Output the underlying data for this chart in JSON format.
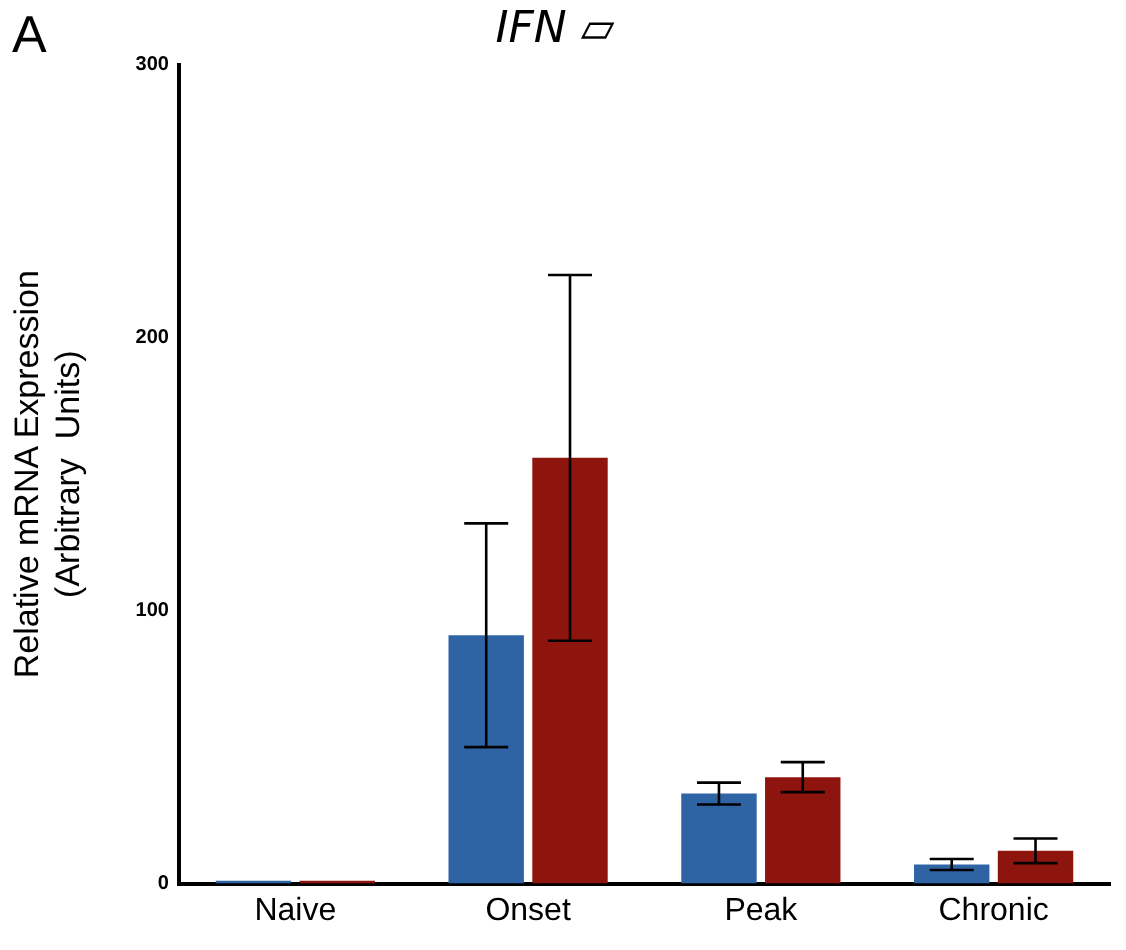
{
  "chart_data": {
    "type": "bar",
    "title": "IFN ▱",
    "ylabel": "Relative mRNA Expression\n(Arbitrary  Units)",
    "annotations": [
      "A"
    ],
    "categories": [
      "Naive",
      "Onset",
      "Peak",
      "Chronic"
    ],
    "series": [
      {
        "color": "#2e64a4",
        "values": [
          1,
          91,
          33,
          7
        ],
        "errors": [
          null,
          41,
          4,
          2
        ]
      },
      {
        "color": "#8e140e",
        "values": [
          1,
          156,
          39,
          12
        ],
        "errors": [
          null,
          67,
          5.5,
          4.5
        ]
      }
    ],
    "ylim": [
      0,
      300
    ],
    "yticks": [
      0,
      100,
      200,
      300
    ],
    "grid": false,
    "legend": false
  }
}
